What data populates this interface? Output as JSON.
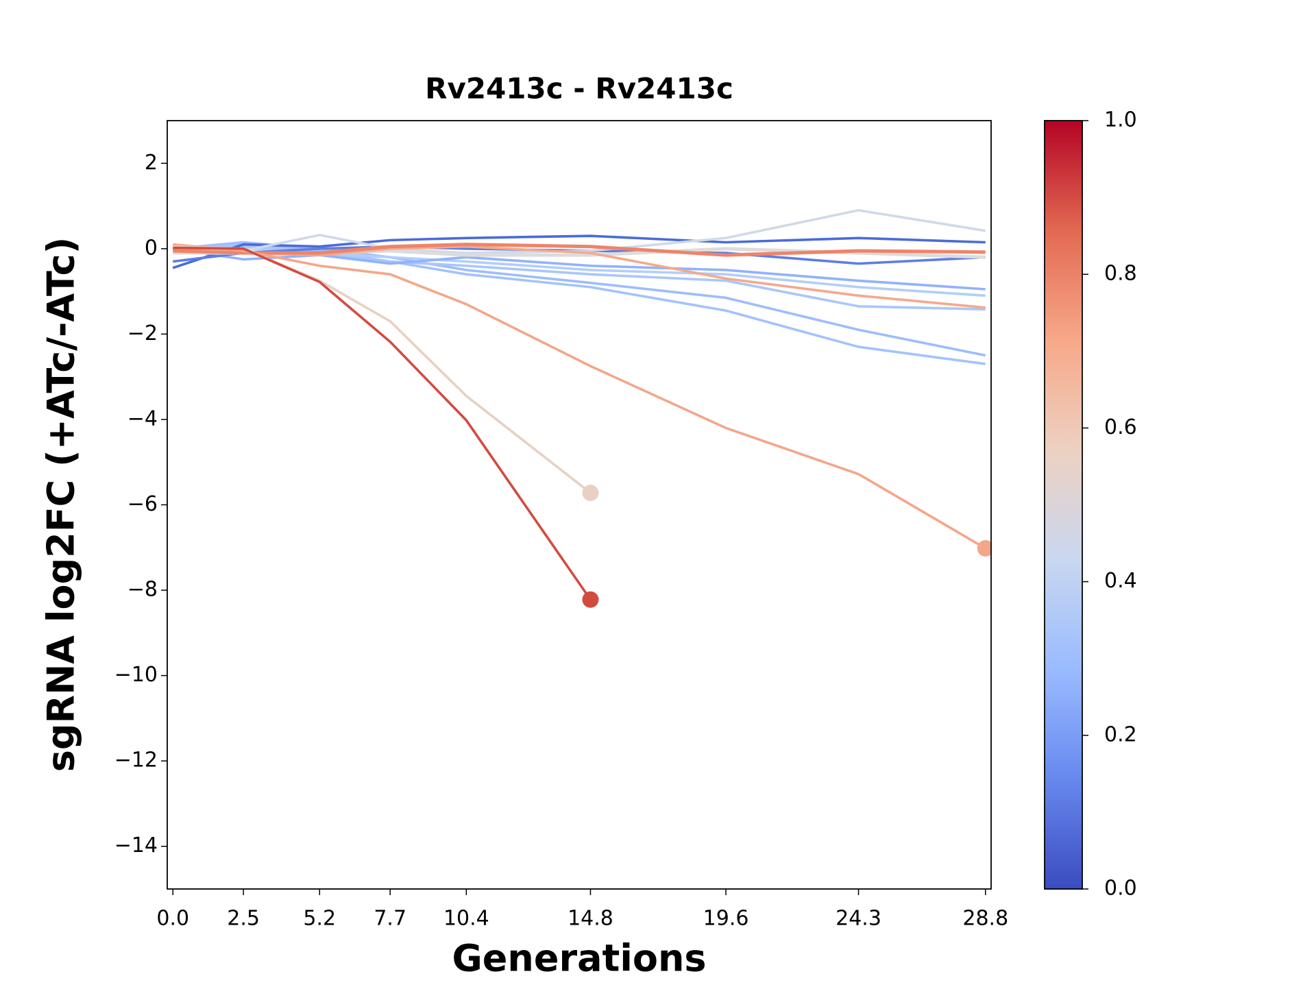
{
  "chart_data": {
    "type": "line",
    "title": "Rv2413c - Rv2413c",
    "x_label": "Generations",
    "y_label": "sgRNA log2FC (+ATc/-ATc)",
    "x": [
      0,
      2.5,
      5.2,
      7.7,
      10.4,
      14.8,
      19.6,
      24.3,
      28.8
    ],
    "xlim": [
      -0.2,
      29.0
    ],
    "xticks": [
      {
        "value": 0,
        "label": "0.0"
      },
      2.5,
      5.2,
      7.7,
      10.4,
      14.8,
      19.6,
      24.3,
      28.8
    ],
    "ylim": [
      -15,
      3
    ],
    "yticks": [
      2,
      0,
      {
        "value": -2,
        "label": "−2"
      },
      {
        "value": -4,
        "label": "−4"
      },
      {
        "value": -6,
        "label": "−6"
      },
      {
        "value": -8,
        "label": "−8"
      },
      {
        "value": -10,
        "label": "−10"
      },
      {
        "value": -12,
        "label": "−12"
      },
      {
        "value": -14,
        "label": "−14"
      }
    ],
    "series": [
      {
        "color": "#9dbdfc",
        "values": [
          0,
          0.15,
          0,
          -0.2,
          -0.5,
          -0.8,
          -1.15,
          -1.9,
          -2.5
        ]
      },
      {
        "color": "#a3c2fe",
        "values": [
          0,
          0.1,
          -0.05,
          -0.3,
          -0.6,
          -0.9,
          -1.45,
          -2.3,
          -2.7
        ]
      },
      {
        "color": "#a9c6fd",
        "values": [
          0,
          0.05,
          -0.1,
          -0.3,
          -0.4,
          -0.6,
          -0.75,
          -1.35,
          -1.42
        ]
      },
      {
        "color": "#b3cdfb",
        "values": [
          0,
          0,
          -0.1,
          -0.2,
          -0.3,
          -0.5,
          -0.6,
          -0.9,
          -1.1
        ]
      },
      {
        "color": "#90b2fe",
        "values": [
          0,
          -0.25,
          -0.15,
          -0.35,
          -0.2,
          -0.4,
          -0.5,
          -0.75,
          -0.95
        ]
      },
      {
        "color": "#4a6bd8",
        "values": [
          -0.45,
          0.1,
          0.05,
          0.2,
          0.25,
          0.3,
          0.15,
          0.25,
          0.15
        ]
      },
      {
        "color": "#5b7de6",
        "values": [
          -0.3,
          -0.1,
          0,
          0.05,
          0,
          -0.05,
          -0.1,
          -0.35,
          -0.2
        ]
      },
      {
        "color": "#cfd9ea",
        "values": [
          0,
          -0.05,
          0.32,
          0,
          -0.1,
          -0.05,
          0.25,
          0.9,
          0.42
        ]
      },
      {
        "color": "#dddcdc",
        "values": [
          -0.1,
          -0.1,
          -0.1,
          -0.05,
          -0.15,
          -0.15,
          0,
          -0.1,
          -0.2
        ]
      },
      {
        "color": "#f5a98b",
        "values": [
          0,
          -0.1,
          -0.15,
          0,
          0.05,
          -0.1,
          -0.7,
          -1.1,
          -1.38
        ]
      },
      {
        "color": "#ee8468",
        "values": [
          -0.05,
          -0.1,
          -0.1,
          0.05,
          0.1,
          0.05,
          -0.15,
          -0.05,
          -0.08
        ]
      },
      {
        "color": "#f4a688",
        "marker_last": true,
        "values": [
          0.1,
          -0.05,
          -0.4,
          -0.6,
          -1.3,
          -2.75,
          -4.2,
          -5.28,
          -7.02
        ]
      },
      {
        "color": "#e8d0c3",
        "marker_last": true,
        "values": [
          0.05,
          0,
          -0.75,
          -1.7,
          -3.45,
          -5.72,
          null,
          null,
          null
        ]
      },
      {
        "color": "#d24b40",
        "marker_last": true,
        "values": [
          0.02,
          0,
          -0.78,
          -2.18,
          -4.02,
          -8.22,
          null,
          null,
          null
        ]
      }
    ],
    "colorbar": {
      "lim": [
        0,
        1
      ],
      "ticks": [
        {
          "value": 0,
          "label": "0.0"
        },
        {
          "value": 0.2,
          "label": "0.2"
        },
        {
          "value": 0.4,
          "label": "0.4"
        },
        {
          "value": 0.6,
          "label": "0.6"
        },
        {
          "value": 0.8,
          "label": "0.8"
        },
        {
          "value": 1,
          "label": "1.0"
        }
      ],
      "colors": [
        "#3b4cc0",
        "#6788ee",
        "#9abbff",
        "#c9d7f0",
        "#edd1c2",
        "#f7a889",
        "#e26952",
        "#b40426"
      ]
    }
  }
}
